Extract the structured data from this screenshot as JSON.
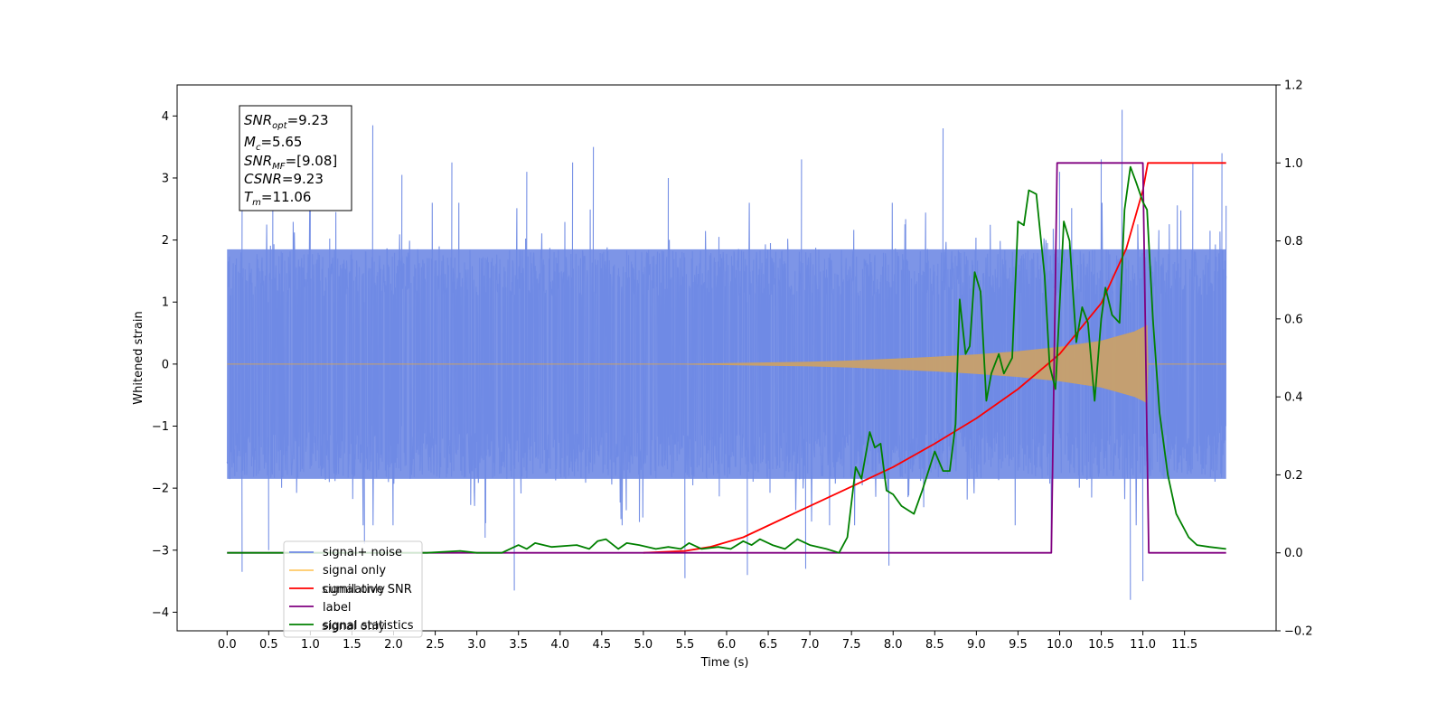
{
  "chart_data": {
    "type": "line",
    "title": "",
    "xlabel": "Time (s)",
    "ylabel": "Whitened strain",
    "xlim": [
      -0.6,
      12.6
    ],
    "ylim": [
      -4.3,
      4.5
    ],
    "y2lim": [
      -0.2,
      1.2
    ],
    "x_ticks": [
      0.0,
      0.5,
      1.0,
      1.5,
      2.0,
      2.5,
      3.0,
      3.5,
      4.0,
      4.5,
      5.0,
      5.5,
      6.0,
      6.5,
      7.0,
      7.5,
      8.0,
      8.5,
      9.0,
      9.5,
      10.0,
      10.5,
      11.0,
      11.5
    ],
    "x_tick_labels": [
      "0.0",
      "0.5",
      "1.0",
      "1.5",
      "2.0",
      "2.5",
      "3.0",
      "3.5",
      "4.0",
      "4.5",
      "5.0",
      "5.5",
      "6.0",
      "6.5",
      "7.0",
      "7.5",
      "8.0",
      "8.5",
      "9.0",
      "9.5",
      "10.0",
      "10.5",
      "11.0",
      "11.5"
    ],
    "y_ticks": [
      -4,
      -3,
      -2,
      -1,
      0,
      1,
      2,
      3,
      4
    ],
    "y_tick_labels": [
      "−4",
      "−3",
      "−2",
      "−1",
      "0",
      "1",
      "2",
      "3",
      "4"
    ],
    "y2_ticks": [
      -0.2,
      0.0,
      0.2,
      0.4,
      0.6,
      0.8,
      1.0,
      1.2
    ],
    "y2_tick_labels": [
      "−0.2",
      "0.0",
      "0.2",
      "0.4",
      "0.6",
      "0.8",
      "1.0",
      "1.2"
    ],
    "grid": false,
    "legend_position": "lower-left",
    "legend": [
      {
        "label": "signal+ noise",
        "color": "#6f8ae4"
      },
      {
        "label": "signal only",
        "color": "#ffc966"
      },
      {
        "label": "cumilative SNR",
        "color": "#ff0000"
      },
      {
        "label": "label",
        "color": "#800080"
      },
      {
        "label": "signal statistics",
        "color": "#008000"
      }
    ],
    "legend_hidden_text": [
      "signal only",
      "signal only"
    ],
    "annotation_lines": [
      "SNRopt=9.23",
      "Mc=5.65",
      "SNRMF=[9.08]",
      "CSNR=9.23",
      "Tm=11.06"
    ],
    "annotation": {
      "snr_opt": {
        "sym": "SNR",
        "sub": "opt",
        "val": "=9.23"
      },
      "mc": {
        "sym": "M",
        "sub": "c",
        "val": "=5.65"
      },
      "snr_mf": {
        "sym": "SNR",
        "sub": "MF",
        "val": "=[9.08]"
      },
      "csnr": {
        "sym": "CSNR",
        "sub": "",
        "val": "=9.23"
      },
      "tm": {
        "sym": "T",
        "sub": "m",
        "val": "=11.06"
      }
    },
    "series": [
      {
        "name": "signal+ noise",
        "axis": "left",
        "color": "#6f8ae4",
        "x_range": [
          0.0,
          12.0
        ],
        "envelope_abs": 1.85,
        "spikes": [
          [
            0.18,
            2.55
          ],
          [
            0.18,
            -3.35
          ],
          [
            0.55,
            2.9
          ],
          [
            0.5,
            -3.0
          ],
          [
            1.0,
            3.1
          ],
          [
            1.75,
            3.85
          ],
          [
            1.65,
            -2.9
          ],
          [
            2.1,
            3.05
          ],
          [
            2.7,
            3.25
          ],
          [
            3.1,
            -2.8
          ],
          [
            3.45,
            -3.65
          ],
          [
            3.6,
            3.1
          ],
          [
            4.15,
            3.25
          ],
          [
            4.4,
            3.5
          ],
          [
            5.5,
            -3.45
          ],
          [
            5.3,
            3.0
          ],
          [
            6.25,
            -3.4
          ],
          [
            6.9,
            3.3
          ],
          [
            6.95,
            -3.3
          ],
          [
            7.95,
            -3.25
          ],
          [
            8.6,
            3.8
          ],
          [
            9.9,
            -3.05
          ],
          [
            10.0,
            3.1
          ],
          [
            10.5,
            3.3
          ],
          [
            10.75,
            4.1
          ],
          [
            10.85,
            -3.8
          ],
          [
            11.0,
            -3.5
          ],
          [
            11.6,
            3.25
          ],
          [
            11.95,
            3.4
          ],
          [
            12.0,
            2.55
          ]
        ]
      },
      {
        "name": "signal only",
        "axis": "left",
        "color": "#c8a06a",
        "envelope": [
          [
            0.0,
            0.0
          ],
          [
            5.5,
            0.0
          ],
          [
            6.0,
            0.01
          ],
          [
            6.5,
            0.02
          ],
          [
            7.0,
            0.03
          ],
          [
            7.5,
            0.05
          ],
          [
            8.0,
            0.08
          ],
          [
            8.5,
            0.11
          ],
          [
            9.0,
            0.15
          ],
          [
            9.5,
            0.2
          ],
          [
            10.0,
            0.27
          ],
          [
            10.5,
            0.37
          ],
          [
            10.9,
            0.52
          ],
          [
            11.05,
            0.62
          ],
          [
            11.06,
            0.0
          ],
          [
            12.0,
            0.0
          ]
        ]
      },
      {
        "name": "cumilative SNR",
        "axis": "right",
        "color": "#ff0000",
        "points": [
          [
            5.0,
            0.0
          ],
          [
            5.5,
            0.005
          ],
          [
            5.8,
            0.015
          ],
          [
            6.2,
            0.04
          ],
          [
            6.5,
            0.07
          ],
          [
            7.0,
            0.12
          ],
          [
            7.5,
            0.17
          ],
          [
            8.0,
            0.22
          ],
          [
            8.5,
            0.28
          ],
          [
            9.0,
            0.345
          ],
          [
            9.5,
            0.42
          ],
          [
            10.0,
            0.51
          ],
          [
            10.5,
            0.64
          ],
          [
            10.8,
            0.78
          ],
          [
            11.0,
            0.93
          ],
          [
            11.06,
            1.0
          ],
          [
            12.0,
            1.0
          ]
        ]
      },
      {
        "name": "label",
        "axis": "right",
        "color": "#800080",
        "points": [
          [
            0.0,
            0.0
          ],
          [
            9.9,
            0.0
          ],
          [
            9.97,
            1.0
          ],
          [
            11.0,
            1.0
          ],
          [
            11.07,
            0.0
          ],
          [
            12.0,
            0.0
          ]
        ]
      },
      {
        "name": "signal statistics",
        "axis": "right",
        "color": "#008000",
        "points": [
          [
            0.0,
            0.0
          ],
          [
            2.4,
            0.0
          ],
          [
            2.8,
            0.005
          ],
          [
            3.0,
            0.0
          ],
          [
            3.3,
            0.0
          ],
          [
            3.5,
            0.02
          ],
          [
            3.6,
            0.01
          ],
          [
            3.7,
            0.025
          ],
          [
            3.9,
            0.015
          ],
          [
            4.2,
            0.02
          ],
          [
            4.35,
            0.01
          ],
          [
            4.45,
            0.03
          ],
          [
            4.55,
            0.035
          ],
          [
            4.7,
            0.01
          ],
          [
            4.8,
            0.025
          ],
          [
            4.95,
            0.02
          ],
          [
            5.15,
            0.01
          ],
          [
            5.3,
            0.015
          ],
          [
            5.45,
            0.01
          ],
          [
            5.55,
            0.025
          ],
          [
            5.7,
            0.01
          ],
          [
            5.9,
            0.015
          ],
          [
            6.05,
            0.01
          ],
          [
            6.2,
            0.03
          ],
          [
            6.3,
            0.02
          ],
          [
            6.4,
            0.035
          ],
          [
            6.55,
            0.02
          ],
          [
            6.7,
            0.01
          ],
          [
            6.85,
            0.035
          ],
          [
            7.0,
            0.02
          ],
          [
            7.2,
            0.01
          ],
          [
            7.35,
            0.0
          ],
          [
            7.45,
            0.04
          ],
          [
            7.55,
            0.22
          ],
          [
            7.62,
            0.19
          ],
          [
            7.72,
            0.31
          ],
          [
            7.78,
            0.27
          ],
          [
            7.85,
            0.28
          ],
          [
            7.92,
            0.16
          ],
          [
            8.0,
            0.15
          ],
          [
            8.1,
            0.12
          ],
          [
            8.25,
            0.1
          ],
          [
            8.35,
            0.16
          ],
          [
            8.5,
            0.26
          ],
          [
            8.6,
            0.21
          ],
          [
            8.68,
            0.21
          ],
          [
            8.75,
            0.33
          ],
          [
            8.8,
            0.65
          ],
          [
            8.87,
            0.51
          ],
          [
            8.92,
            0.53
          ],
          [
            8.98,
            0.72
          ],
          [
            9.05,
            0.67
          ],
          [
            9.12,
            0.39
          ],
          [
            9.18,
            0.46
          ],
          [
            9.27,
            0.51
          ],
          [
            9.33,
            0.46
          ],
          [
            9.43,
            0.5
          ],
          [
            9.5,
            0.85
          ],
          [
            9.57,
            0.84
          ],
          [
            9.63,
            0.93
          ],
          [
            9.72,
            0.92
          ],
          [
            9.82,
            0.71
          ],
          [
            9.88,
            0.48
          ],
          [
            9.95,
            0.42
          ],
          [
            10.05,
            0.85
          ],
          [
            10.12,
            0.8
          ],
          [
            10.2,
            0.54
          ],
          [
            10.27,
            0.63
          ],
          [
            10.34,
            0.59
          ],
          [
            10.42,
            0.39
          ],
          [
            10.5,
            0.6
          ],
          [
            10.55,
            0.68
          ],
          [
            10.63,
            0.61
          ],
          [
            10.72,
            0.59
          ],
          [
            10.78,
            0.88
          ],
          [
            10.85,
            0.99
          ],
          [
            10.92,
            0.95
          ],
          [
            11.0,
            0.9
          ],
          [
            11.05,
            0.88
          ],
          [
            11.12,
            0.6
          ],
          [
            11.2,
            0.36
          ],
          [
            11.3,
            0.2
          ],
          [
            11.4,
            0.1
          ],
          [
            11.55,
            0.04
          ],
          [
            11.65,
            0.02
          ],
          [
            11.8,
            0.015
          ],
          [
            12.0,
            0.01
          ]
        ]
      }
    ]
  }
}
